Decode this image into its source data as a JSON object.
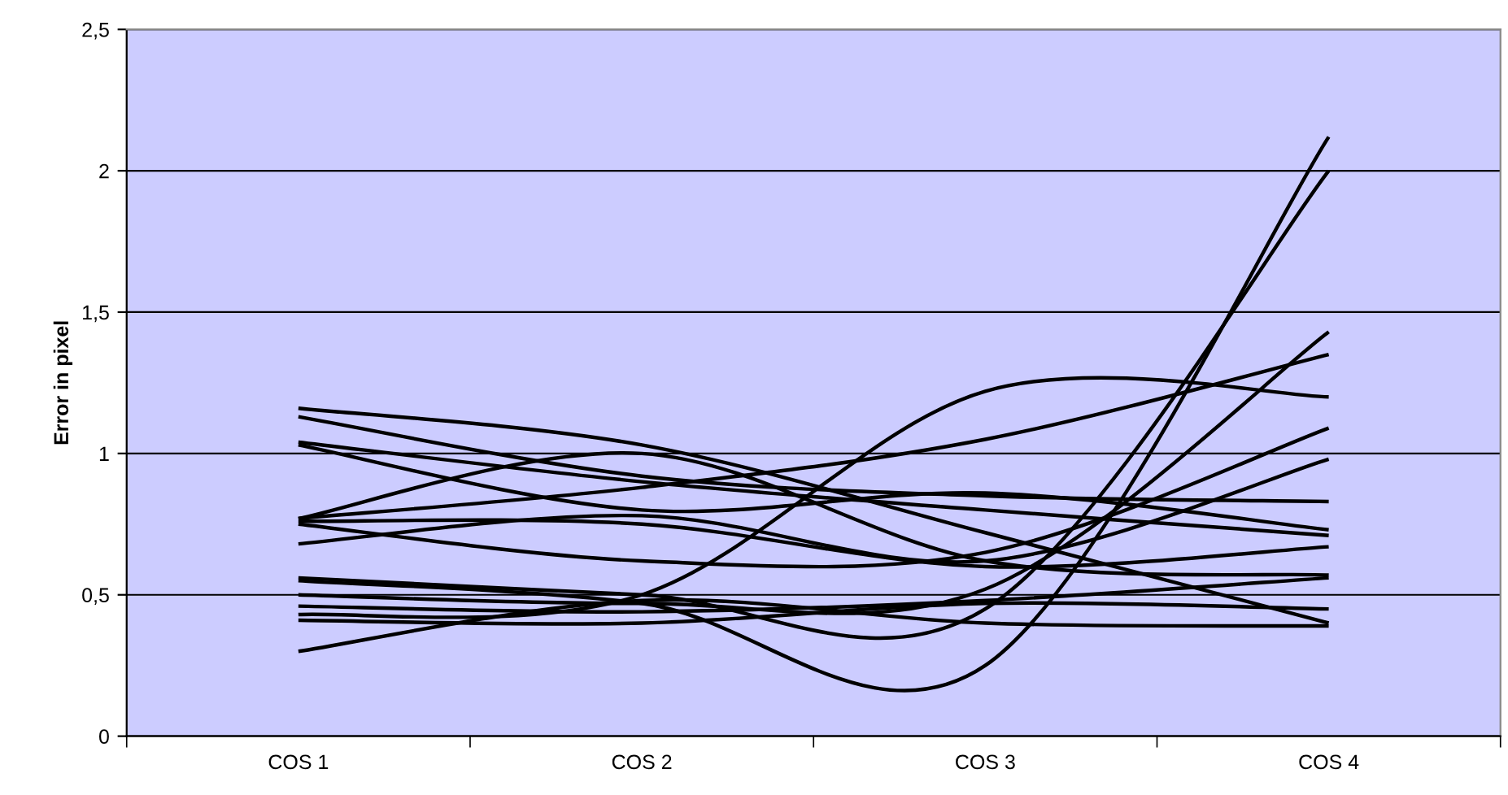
{
  "chart_data": {
    "type": "line",
    "ylabel": "Error in pixel",
    "categories": [
      "COS 1",
      "COS 2",
      "COS 3",
      "COS 4"
    ],
    "ylim": [
      0,
      2.5
    ],
    "yticks": [
      {
        "value": 0,
        "label": "0"
      },
      {
        "value": 0.5,
        "label": "0,5"
      },
      {
        "value": 1,
        "label": "1"
      },
      {
        "value": 1.5,
        "label": "1,5"
      },
      {
        "value": 2,
        "label": "2"
      },
      {
        "value": 2.5,
        "label": "2,5"
      }
    ],
    "grid": "y",
    "marker": "none",
    "line_style": "solid",
    "series": [
      {
        "color": "#000000",
        "values": [
          1.16,
          1.03,
          0.72,
          0.4
        ]
      },
      {
        "color": "#000000",
        "values": [
          1.13,
          0.92,
          0.85,
          0.83
        ]
      },
      {
        "color": "#000000",
        "values": [
          1.04,
          0.9,
          0.8,
          0.71
        ]
      },
      {
        "color": "#000000",
        "values": [
          1.03,
          0.8,
          0.86,
          0.73
        ]
      },
      {
        "color": "#000000",
        "values": [
          0.77,
          1.0,
          0.62,
          0.57
        ]
      },
      {
        "color": "#000000",
        "values": [
          0.77,
          0.88,
          1.05,
          1.35
        ]
      },
      {
        "color": "#000000",
        "values": [
          0.76,
          0.75,
          0.6,
          0.67
        ]
      },
      {
        "color": "#000000",
        "values": [
          0.75,
          0.62,
          0.65,
          1.09
        ]
      },
      {
        "color": "#000000",
        "values": [
          0.68,
          0.78,
          0.62,
          0.98
        ]
      },
      {
        "color": "#000000",
        "values": [
          0.56,
          0.5,
          0.45,
          2.0
        ]
      },
      {
        "color": "#000000",
        "values": [
          0.55,
          0.47,
          0.25,
          2.12
        ]
      },
      {
        "color": "#000000",
        "values": [
          0.5,
          0.47,
          0.52,
          1.43
        ]
      },
      {
        "color": "#000000",
        "values": [
          0.46,
          0.44,
          0.48,
          0.56
        ]
      },
      {
        "color": "#000000",
        "values": [
          0.43,
          0.5,
          1.22,
          1.2
        ]
      },
      {
        "color": "#000000",
        "values": [
          0.41,
          0.4,
          0.47,
          0.45
        ]
      },
      {
        "color": "#000000",
        "values": [
          0.3,
          0.48,
          0.4,
          0.39
        ]
      }
    ]
  }
}
